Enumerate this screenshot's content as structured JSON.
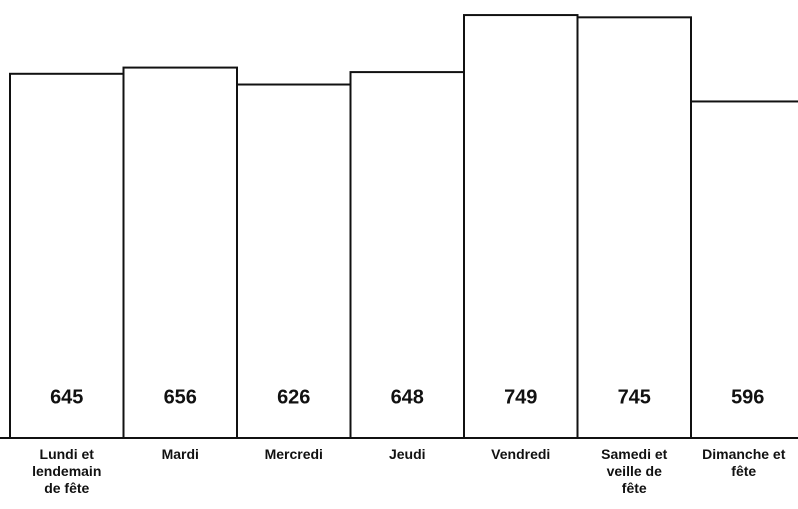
{
  "chart_data": {
    "type": "bar",
    "categories": [
      "Lundi et lendemain de fête",
      "Mardi",
      "Mercredi",
      "Jeudi",
      "Vendredi",
      "Samedi et veille de fête",
      "Dimanche et fête"
    ],
    "values": [
      645,
      656,
      626,
      648,
      749,
      745,
      596
    ],
    "color": "#ffffff",
    "ylim": [
      0,
      750
    ]
  }
}
